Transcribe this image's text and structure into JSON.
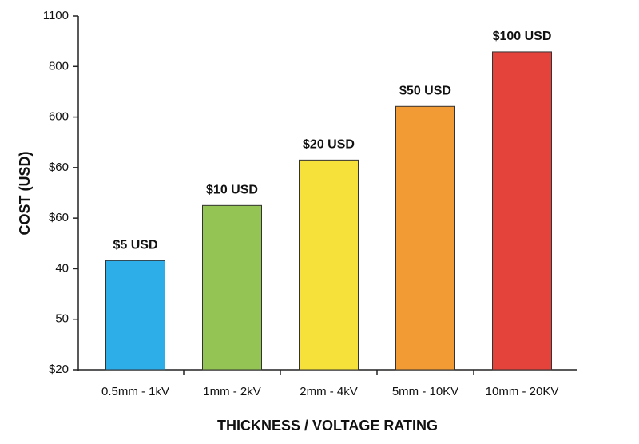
{
  "chart_data": {
    "type": "bar",
    "x_label": "THICKNESS / VOLTAGE RATING",
    "y_label": "COST (USD)",
    "categories": [
      "0.5mm - 1kV",
      "1mm - 2kV",
      "2mm - 4kV",
      "5mm - 10KV",
      "10mm - 20KV"
    ],
    "values": [
      2.16,
      3.25,
      4.15,
      5.21,
      6.29
    ],
    "annotations": [
      "$5 USD",
      "$10 USD",
      "$20 USD",
      "$50 USD",
      "$100 USD"
    ],
    "colors": [
      "#2eaee8",
      "#93c454",
      "#f6e03a",
      "#f29a33",
      "#e3433b"
    ],
    "ylim": [
      0,
      7
    ],
    "yticks": [
      {
        "value": 0,
        "label": "$20"
      },
      {
        "value": 1,
        "label": "50"
      },
      {
        "value": 2,
        "label": "40"
      },
      {
        "value": 3,
        "label": "$60"
      },
      {
        "value": 4,
        "label": "$60"
      },
      {
        "value": 5,
        "label": "600"
      },
      {
        "value": 6,
        "label": "800"
      },
      {
        "value": 7,
        "label": "1100"
      }
    ],
    "grid": false
  }
}
